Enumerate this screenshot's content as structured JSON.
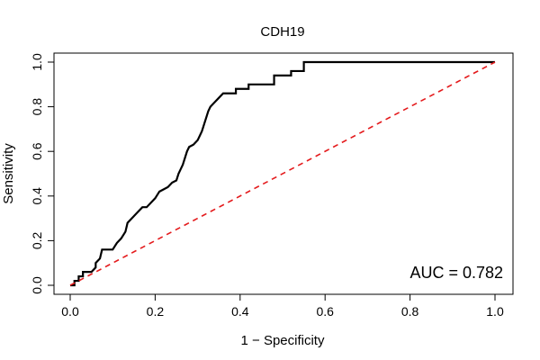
{
  "chart_data": {
    "type": "line",
    "title": "CDH19",
    "xlabel": "1 − Specificity",
    "ylabel": "Sensitivity",
    "xlim": [
      0,
      1
    ],
    "ylim": [
      0,
      1
    ],
    "xticks": [
      "0.0",
      "0.2",
      "0.4",
      "0.6",
      "0.8",
      "1.0"
    ],
    "yticks": [
      "0.0",
      "0.2",
      "0.4",
      "0.6",
      "0.8",
      "1.0"
    ],
    "grid": false,
    "annotation": "AUC = 0.782",
    "series": [
      {
        "color": "#000000",
        "style": "solid",
        "points": [
          [
            0.0,
            0.0
          ],
          [
            0.01,
            0.0
          ],
          [
            0.01,
            0.02
          ],
          [
            0.02,
            0.02
          ],
          [
            0.02,
            0.04
          ],
          [
            0.03,
            0.04
          ],
          [
            0.03,
            0.06
          ],
          [
            0.05,
            0.06
          ],
          [
            0.06,
            0.08
          ],
          [
            0.06,
            0.1
          ],
          [
            0.07,
            0.12
          ],
          [
            0.075,
            0.16
          ],
          [
            0.1,
            0.16
          ],
          [
            0.11,
            0.19
          ],
          [
            0.12,
            0.21
          ],
          [
            0.13,
            0.24
          ],
          [
            0.135,
            0.28
          ],
          [
            0.15,
            0.31
          ],
          [
            0.16,
            0.33
          ],
          [
            0.17,
            0.35
          ],
          [
            0.18,
            0.35
          ],
          [
            0.19,
            0.37
          ],
          [
            0.2,
            0.39
          ],
          [
            0.21,
            0.42
          ],
          [
            0.22,
            0.43
          ],
          [
            0.23,
            0.44
          ],
          [
            0.24,
            0.46
          ],
          [
            0.25,
            0.47
          ],
          [
            0.255,
            0.5
          ],
          [
            0.26,
            0.52
          ],
          [
            0.265,
            0.54
          ],
          [
            0.27,
            0.57
          ],
          [
            0.275,
            0.6
          ],
          [
            0.28,
            0.62
          ],
          [
            0.29,
            0.63
          ],
          [
            0.3,
            0.65
          ],
          [
            0.305,
            0.67
          ],
          [
            0.31,
            0.69
          ],
          [
            0.315,
            0.72
          ],
          [
            0.32,
            0.75
          ],
          [
            0.325,
            0.78
          ],
          [
            0.33,
            0.8
          ],
          [
            0.34,
            0.82
          ],
          [
            0.35,
            0.84
          ],
          [
            0.36,
            0.86
          ],
          [
            0.39,
            0.86
          ],
          [
            0.39,
            0.88
          ],
          [
            0.42,
            0.88
          ],
          [
            0.42,
            0.9
          ],
          [
            0.48,
            0.9
          ],
          [
            0.48,
            0.94
          ],
          [
            0.52,
            0.94
          ],
          [
            0.52,
            0.96
          ],
          [
            0.55,
            0.96
          ],
          [
            0.55,
            1.0
          ],
          [
            1.0,
            1.0
          ]
        ]
      },
      {
        "color": "#e41a1c",
        "style": "dashed",
        "points": [
          [
            0.0,
            0.0
          ],
          [
            1.0,
            1.0
          ]
        ]
      }
    ]
  }
}
